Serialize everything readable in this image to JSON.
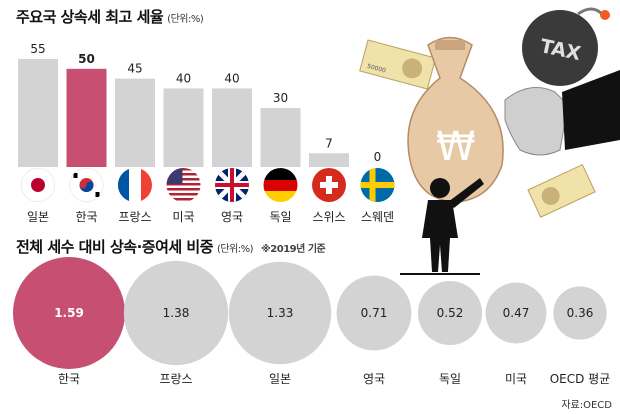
{
  "chart_data": [
    {
      "type": "bar",
      "title": "주요국 상속세 최고 세율",
      "unit": "(단위:%)",
      "categories": [
        "일본",
        "한국",
        "프랑스",
        "미국",
        "영국",
        "독일",
        "스위스",
        "스웨덴"
      ],
      "values": [
        55,
        50,
        45,
        40,
        40,
        30,
        7,
        0
      ],
      "highlight": "한국",
      "ylim": [
        0,
        55
      ],
      "flags": [
        "japan-flag",
        "south-korea-flag",
        "france-flag",
        "usa-flag",
        "uk-flag",
        "germany-flag",
        "switzerland-flag",
        "sweden-flag"
      ]
    },
    {
      "type": "bubble",
      "title": "전체 세수 대비 상속·증여세 비중",
      "unit": "(단위:%)",
      "note": "※2019년 기준",
      "categories": [
        "한국",
        "프랑스",
        "일본",
        "영국",
        "독일",
        "미국",
        "OECD 평균"
      ],
      "values": [
        1.59,
        1.38,
        1.33,
        0.71,
        0.52,
        0.47,
        0.36
      ],
      "highlight": "한국"
    }
  ],
  "source": "자료:OECD",
  "illustration": {
    "tax_label": "TAX",
    "currency_symbol": "₩",
    "banknote_value": "50000"
  },
  "colors": {
    "highlight": "#c64f72",
    "bar": "#d3d3d3",
    "bubble": "#d3d3d3"
  }
}
